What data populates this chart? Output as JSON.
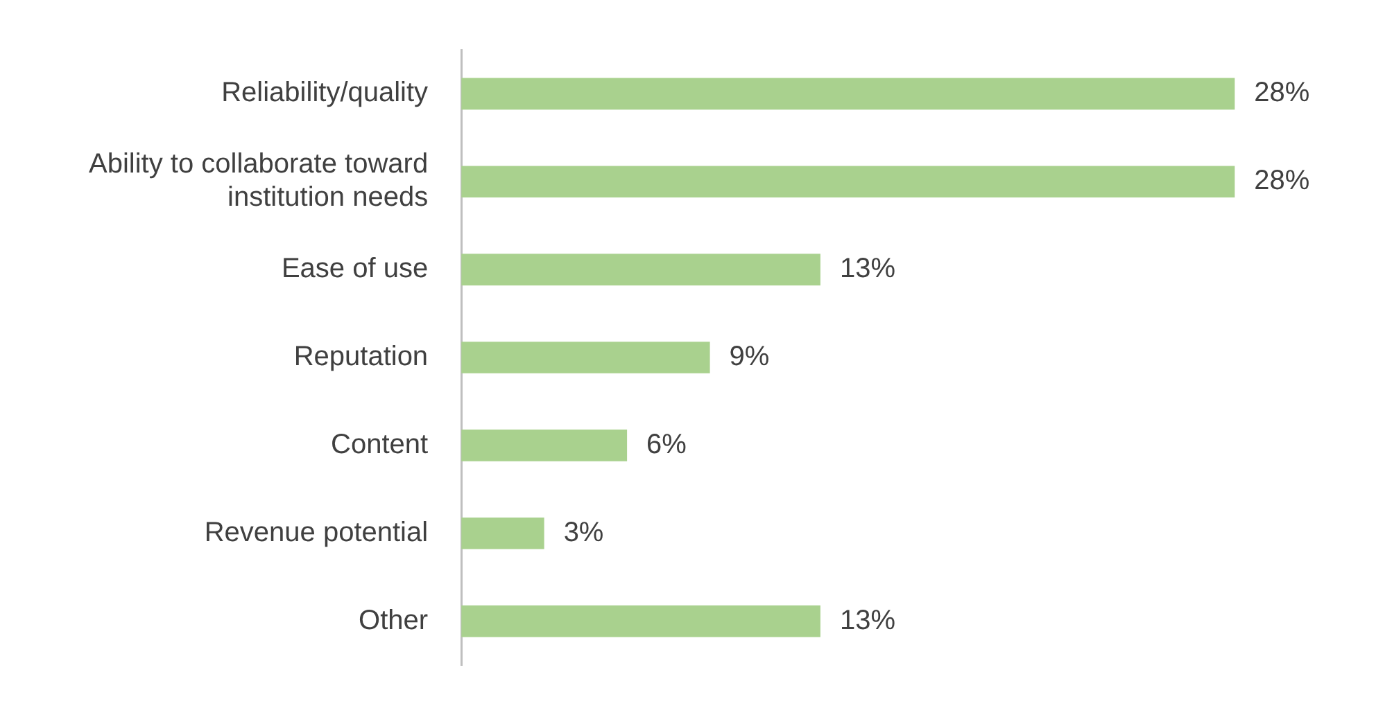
{
  "chart_data": {
    "type": "bar",
    "orientation": "horizontal",
    "categories": [
      "Reliability/quality",
      "Ability to collaborate toward institution needs",
      "Ease of use",
      "Reputation",
      "Content",
      "Revenue potential",
      "Other"
    ],
    "values": [
      28,
      28,
      13,
      9,
      6,
      3,
      13
    ],
    "value_labels": [
      "28%",
      "28%",
      "13%",
      "9%",
      "6%",
      "3%",
      "13%"
    ],
    "color": "#a9d18e",
    "legend": false,
    "tick_labels": "y"
  }
}
